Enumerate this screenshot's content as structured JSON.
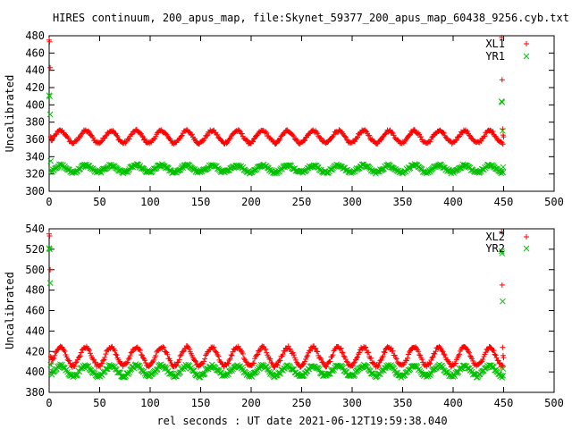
{
  "title": "HIRES continuum, 200_apus_map, file:Skynet_59377_200_apus_map_60438_9256.cyb.txt",
  "colors": {
    "red": "#ff0000",
    "green": "#00c000"
  },
  "chart_data": [
    {
      "type": "scatter",
      "title": "HIRES continuum, 200_apus_map, file:Skynet_59377_200_apus_map_60438_9256.cyb.txt",
      "xlabel": "",
      "ylabel": "Uncalibrated",
      "xlim": [
        0,
        500
      ],
      "ylim": [
        300,
        480
      ],
      "xticks": [
        0,
        50,
        100,
        150,
        200,
        250,
        300,
        350,
        400,
        450,
        500
      ],
      "yticks": [
        300,
        320,
        340,
        360,
        380,
        400,
        420,
        440,
        460,
        480
      ],
      "legend": "top-right",
      "series": [
        {
          "name": "XL1",
          "marker": "plus",
          "color": "#ff0000",
          "x": [
            0,
            0.5,
            1,
            1.5,
            2,
            448,
            448.5,
            449,
            449.5,
            450
          ],
          "y": [
            475,
            473,
            443,
            363,
            362,
            478,
            429,
            372,
            365,
            363
          ],
          "baseline": 363,
          "ripple_amplitude": 7,
          "ripple_period": 25,
          "x_range": [
            2,
            450
          ]
        },
        {
          "name": "YR1",
          "marker": "cross",
          "color": "#00c000",
          "x": [
            0,
            0.5,
            1,
            1.5,
            448,
            448.5,
            449,
            449.5
          ],
          "y": [
            411,
            410,
            389,
            335,
            404,
            403,
            370,
            328
          ],
          "baseline": 326,
          "ripple_amplitude": 4,
          "ripple_period": 25,
          "x_range": [
            2,
            450
          ]
        }
      ]
    },
    {
      "type": "scatter",
      "title": "",
      "xlabel": "rel seconds : UT date 2021-06-12T19:59:38.040",
      "ylabel": "Uncalibrated",
      "xlim": [
        0,
        500
      ],
      "ylim": [
        380,
        540
      ],
      "xticks": [
        0,
        50,
        100,
        150,
        200,
        250,
        300,
        350,
        400,
        450,
        500
      ],
      "yticks": [
        380,
        400,
        420,
        440,
        460,
        480,
        500,
        520,
        540
      ],
      "legend": "top-right",
      "series": [
        {
          "name": "XL2",
          "marker": "plus",
          "color": "#ff0000",
          "x": [
            0,
            0.5,
            1,
            1.5,
            2,
            448,
            448.5,
            449,
            449.5,
            450
          ],
          "y": [
            535,
            533,
            500,
            415,
            414,
            537,
            485,
            424,
            416,
            414
          ],
          "baseline": 415,
          "ripple_amplitude": 9,
          "ripple_period": 25,
          "x_range": [
            2,
            450
          ]
        },
        {
          "name": "YR2",
          "marker": "cross",
          "color": "#00c000",
          "x": [
            0,
            0.5,
            1,
            1.5,
            448,
            448.5,
            449,
            449.5
          ],
          "y": [
            521,
            520,
            487,
            407,
            518,
            516,
            469,
            403
          ],
          "baseline": 401,
          "ripple_amplitude": 5,
          "ripple_period": 25,
          "x_range": [
            2,
            450
          ]
        }
      ]
    }
  ]
}
